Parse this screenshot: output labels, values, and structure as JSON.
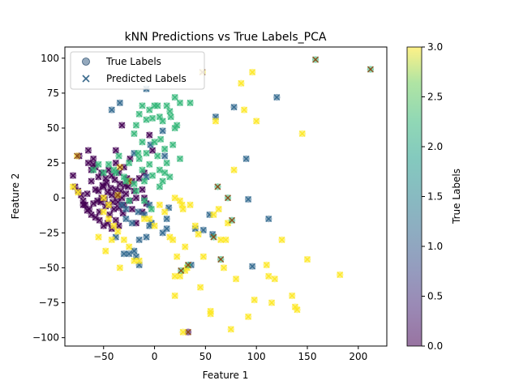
{
  "chart_data": {
    "type": "scatter",
    "title": "kNN Predictions vs True Labels_PCA",
    "xlabel": "Feature 1",
    "ylabel": "Feature 2",
    "xlim": [
      -88,
      228
    ],
    "ylim": [
      -106,
      108
    ],
    "xticks": [
      "−50",
      "0",
      "50",
      "100",
      "150",
      "200"
    ],
    "yticks": [
      "−100",
      "−75",
      "−50",
      "−25",
      "0",
      "25",
      "50",
      "75",
      "100"
    ],
    "xtick_values": [
      -50,
      0,
      50,
      100,
      150,
      200
    ],
    "ytick_values": [
      -100,
      -75,
      -50,
      -25,
      0,
      25,
      50,
      75,
      100
    ],
    "grid": false,
    "legend": {
      "placement": "upper-left",
      "entries": [
        "True Labels",
        "Predicted Labels"
      ]
    },
    "colorbar": {
      "label": "True Labels",
      "range": [
        0.0,
        3.0
      ],
      "ticks": [
        "0.0",
        "0.5",
        "1.0",
        "1.5",
        "2.0",
        "2.5",
        "3.0"
      ],
      "tick_values": [
        0,
        0.5,
        1.0,
        1.5,
        2.0,
        2.5,
        3.0
      ],
      "colormap": "viridis"
    },
    "colors": {
      "class_0": "#440154",
      "class_1": "#31688e",
      "class_2": "#35b779",
      "class_3": "#fde725",
      "mismatch": "#8b4513"
    },
    "points": [
      [
        -80,
        16,
        0,
        0
      ],
      [
        -78,
        8,
        0,
        0
      ],
      [
        -75,
        5,
        0,
        0
      ],
      [
        -72,
        2,
        0,
        0
      ],
      [
        -70,
        -2,
        0,
        0
      ],
      [
        -68,
        -5,
        0,
        0
      ],
      [
        -66,
        3,
        0,
        0
      ],
      [
        -64,
        -8,
        0,
        0
      ],
      [
        -62,
        12,
        0,
        0
      ],
      [
        -60,
        -4,
        0,
        0
      ],
      [
        -58,
        6,
        0,
        0
      ],
      [
        -56,
        -2,
        0,
        0
      ],
      [
        -54,
        -10,
        0,
        0
      ],
      [
        -52,
        0,
        0,
        0
      ],
      [
        -50,
        8,
        0,
        0
      ],
      [
        -48,
        -6,
        0,
        0
      ],
      [
        -46,
        4,
        0,
        0
      ],
      [
        -44,
        -12,
        0,
        0
      ],
      [
        -42,
        2,
        0,
        0
      ],
      [
        -40,
        -8,
        0,
        0
      ],
      [
        -38,
        6,
        0,
        0
      ],
      [
        -36,
        -3,
        0,
        0
      ],
      [
        -34,
        10,
        0,
        0
      ],
      [
        -32,
        0,
        0,
        0
      ],
      [
        -30,
        -5,
        0,
        0
      ],
      [
        -28,
        3,
        0,
        0
      ],
      [
        -26,
        8,
        0,
        0
      ],
      [
        -24,
        -2,
        0,
        0
      ],
      [
        -22,
        12,
        0,
        0
      ],
      [
        -20,
        5,
        0,
        0
      ],
      [
        -18,
        0,
        0,
        0
      ],
      [
        -65,
        25,
        0,
        0
      ],
      [
        -62,
        20,
        0,
        0
      ],
      [
        -60,
        28,
        0,
        0
      ],
      [
        -58,
        22,
        0,
        0
      ],
      [
        -55,
        15,
        0,
        0
      ],
      [
        -52,
        18,
        0,
        0
      ],
      [
        -48,
        14,
        0,
        0
      ],
      [
        -45,
        20,
        0,
        0
      ],
      [
        -42,
        16,
        0,
        0
      ],
      [
        -38,
        25,
        0,
        0
      ],
      [
        -35,
        18,
        0,
        0
      ],
      [
        -30,
        22,
        0,
        0
      ],
      [
        -27,
        14,
        0,
        0
      ],
      [
        -24,
        28,
        0,
        0
      ],
      [
        -70,
        -5,
        0,
        0
      ],
      [
        -66,
        -9,
        0,
        0
      ],
      [
        -62,
        -12,
        0,
        0
      ],
      [
        -58,
        -14,
        0,
        0
      ],
      [
        -54,
        -16,
        0,
        0
      ],
      [
        -50,
        -20,
        0,
        0
      ],
      [
        -46,
        -18,
        0,
        0
      ],
      [
        -42,
        -22,
        0,
        0
      ],
      [
        -38,
        -16,
        0,
        0
      ],
      [
        -35,
        -20,
        0,
        0
      ],
      [
        -55,
        5,
        0,
        0
      ],
      [
        -53,
        -3,
        0,
        0
      ],
      [
        -51,
        9,
        0,
        0
      ],
      [
        -49,
        -1,
        0,
        0
      ],
      [
        -47,
        11,
        0,
        0
      ],
      [
        -45,
        -5,
        0,
        0
      ],
      [
        -43,
        7,
        0,
        0
      ],
      [
        -41,
        -3,
        0,
        0
      ],
      [
        -39,
        13,
        0,
        0
      ],
      [
        -37,
        1,
        0,
        0
      ],
      [
        -35,
        -7,
        0,
        0
      ],
      [
        -33,
        5,
        0,
        0
      ],
      [
        -31,
        -11,
        0,
        0
      ],
      [
        -29,
        9,
        0,
        0
      ],
      [
        -15,
        14,
        0,
        0
      ],
      [
        -12,
        6,
        0,
        0
      ],
      [
        -10,
        18,
        0,
        0
      ],
      [
        -8,
        -4,
        0,
        0
      ],
      [
        -5,
        45,
        0,
        0
      ],
      [
        -32,
        52,
        0,
        0
      ],
      [
        -38,
        34,
        0,
        0
      ],
      [
        -22,
        -8,
        0,
        0
      ],
      [
        -18,
        -18,
        0,
        0
      ],
      [
        -74,
        30,
        0,
        0
      ],
      [
        -65,
        34,
        0,
        0
      ],
      [
        -60,
        24,
        0,
        0
      ],
      [
        -12,
        -10,
        0,
        0
      ],
      [
        -10,
        0,
        0,
        0
      ],
      [
        -2,
        34,
        0,
        0
      ],
      [
        -76,
        30,
        3,
        0
      ],
      [
        47,
        90,
        3,
        0
      ],
      [
        -34,
        22,
        3,
        0
      ],
      [
        -25,
        12,
        3,
        0
      ],
      [
        -36,
        2,
        3,
        0
      ],
      [
        -28,
        -8,
        1,
        1
      ],
      [
        -38,
        -28,
        1,
        1
      ],
      [
        -30,
        -40,
        1,
        1
      ],
      [
        -20,
        -38,
        1,
        1
      ],
      [
        -22,
        -18,
        1,
        1
      ],
      [
        -16,
        -10,
        1,
        1
      ],
      [
        -10,
        -12,
        1,
        1
      ],
      [
        -8,
        -28,
        1,
        1
      ],
      [
        -5,
        -20,
        1,
        1
      ],
      [
        -15,
        -30,
        1,
        1
      ],
      [
        -32,
        -5,
        1,
        1
      ],
      [
        -28,
        -15,
        1,
        1
      ],
      [
        -34,
        68,
        1,
        1
      ],
      [
        -42,
        63,
        1,
        1
      ],
      [
        -20,
        32,
        1,
        1
      ],
      [
        -8,
        15,
        1,
        1
      ],
      [
        -4,
        38,
        1,
        1
      ],
      [
        8,
        48,
        1,
        1
      ],
      [
        10,
        30,
        1,
        1
      ],
      [
        12,
        -15,
        1,
        1
      ],
      [
        8,
        -25,
        1,
        1
      ],
      [
        36,
        -48,
        1,
        1
      ],
      [
        40,
        -22,
        1,
        1
      ],
      [
        48,
        -23,
        1,
        1
      ],
      [
        57,
        -26,
        1,
        1
      ],
      [
        54,
        -12,
        1,
        1
      ],
      [
        60,
        58,
        1,
        1
      ],
      [
        78,
        65,
        1,
        1
      ],
      [
        90,
        28,
        1,
        1
      ],
      [
        92,
        -1,
        1,
        1
      ],
      [
        96,
        -49,
        1,
        1
      ],
      [
        112,
        -15,
        1,
        1
      ],
      [
        120,
        72,
        1,
        1
      ],
      [
        -8,
        78,
        1,
        1
      ],
      [
        -25,
        -40,
        1,
        1
      ],
      [
        -18,
        -42,
        1,
        1
      ],
      [
        -15,
        -48,
        1,
        1
      ],
      [
        -3,
        -18,
        1,
        1
      ],
      [
        -5,
        -5,
        1,
        1
      ],
      [
        12,
        -22,
        1,
        1
      ],
      [
        14,
        -7,
        1,
        1
      ],
      [
        33,
        -96,
        0,
        1
      ],
      [
        65,
        -44,
        2,
        1
      ],
      [
        72,
        0,
        2,
        1
      ],
      [
        -45,
        24,
        2,
        2
      ],
      [
        -40,
        20,
        2,
        2
      ],
      [
        -35,
        30,
        2,
        2
      ],
      [
        -30,
        15,
        2,
        2
      ],
      [
        -25,
        25,
        2,
        2
      ],
      [
        -20,
        10,
        2,
        2
      ],
      [
        -15,
        28,
        2,
        2
      ],
      [
        -12,
        20,
        2,
        2
      ],
      [
        -10,
        12,
        2,
        2
      ],
      [
        -8,
        32,
        2,
        2
      ],
      [
        -5,
        24,
        2,
        2
      ],
      [
        -2,
        16,
        2,
        2
      ],
      [
        0,
        40,
        2,
        2
      ],
      [
        3,
        30,
        2,
        2
      ],
      [
        5,
        20,
        2,
        2
      ],
      [
        8,
        12,
        2,
        2
      ],
      [
        10,
        35,
        2,
        2
      ],
      [
        12,
        25,
        2,
        2
      ],
      [
        15,
        15,
        2,
        2
      ],
      [
        18,
        38,
        2,
        2
      ],
      [
        20,
        50,
        2,
        2
      ],
      [
        22,
        52,
        2,
        2
      ],
      [
        25,
        28,
        2,
        2
      ],
      [
        -20,
        46,
        2,
        2
      ],
      [
        -18,
        52,
        2,
        2
      ],
      [
        -15,
        60,
        2,
        2
      ],
      [
        -12,
        66,
        2,
        2
      ],
      [
        -8,
        56,
        2,
        2
      ],
      [
        -5,
        63,
        2,
        2
      ],
      [
        -2,
        57,
        2,
        2
      ],
      [
        0,
        66,
        2,
        2
      ],
      [
        3,
        66,
        2,
        2
      ],
      [
        5,
        58,
        2,
        2
      ],
      [
        8,
        55,
        2,
        2
      ],
      [
        12,
        66,
        2,
        2
      ],
      [
        15,
        62,
        2,
        2
      ],
      [
        20,
        72,
        2,
        2
      ],
      [
        25,
        68,
        2,
        2
      ],
      [
        35,
        68,
        2,
        2
      ],
      [
        -50,
        18,
        2,
        2
      ],
      [
        -55,
        24,
        2,
        2
      ],
      [
        -60,
        20,
        2,
        2
      ],
      [
        -38,
        18,
        2,
        2
      ],
      [
        -28,
        12,
        2,
        2
      ],
      [
        -18,
        5,
        2,
        2
      ],
      [
        5,
        8,
        2,
        2
      ],
      [
        10,
        18,
        2,
        2
      ],
      [
        -16,
        32,
        2,
        2
      ],
      [
        -12,
        40,
        2,
        2
      ],
      [
        6,
        42,
        2,
        2
      ],
      [
        16,
        58,
        2,
        2
      ],
      [
        -10,
        -2,
        2,
        2
      ],
      [
        -3,
        -8,
        2,
        2
      ],
      [
        -25,
        -2,
        2,
        2
      ],
      [
        -80,
        8,
        3,
        3
      ],
      [
        -75,
        4,
        3,
        3
      ],
      [
        -50,
        -10,
        3,
        3
      ],
      [
        -45,
        -15,
        3,
        3
      ],
      [
        -40,
        -20,
        3,
        3
      ],
      [
        -42,
        -30,
        3,
        3
      ],
      [
        -36,
        -24,
        3,
        3
      ],
      [
        -30,
        -30,
        3,
        3
      ],
      [
        -25,
        -35,
        3,
        3
      ],
      [
        -20,
        -45,
        3,
        3
      ],
      [
        -15,
        -45,
        3,
        3
      ],
      [
        -10,
        -15,
        3,
        3
      ],
      [
        -5,
        -15,
        3,
        3
      ],
      [
        0,
        -20,
        3,
        3
      ],
      [
        5,
        -5,
        3,
        3
      ],
      [
        10,
        -10,
        3,
        3
      ],
      [
        15,
        -28,
        3,
        3
      ],
      [
        18,
        -30,
        3,
        3
      ],
      [
        20,
        -56,
        3,
        3
      ],
      [
        22,
        -42,
        3,
        3
      ],
      [
        25,
        -2,
        3,
        3
      ],
      [
        27,
        -5,
        3,
        3
      ],
      [
        28,
        -8,
        3,
        3
      ],
      [
        30,
        -52,
        3,
        3
      ],
      [
        32,
        -50,
        3,
        3
      ],
      [
        35,
        -5,
        3,
        3
      ],
      [
        40,
        -20,
        3,
        3
      ],
      [
        43,
        -26,
        3,
        3
      ],
      [
        45,
        -64,
        3,
        3
      ],
      [
        48,
        -42,
        3,
        3
      ],
      [
        55,
        -81,
        3,
        3
      ],
      [
        58,
        -12,
        3,
        3
      ],
      [
        60,
        55,
        3,
        3
      ],
      [
        63,
        -8,
        3,
        3
      ],
      [
        65,
        -30,
        3,
        3
      ],
      [
        68,
        -50,
        3,
        3
      ],
      [
        70,
        -30,
        3,
        3
      ],
      [
        72,
        -18,
        3,
        3
      ],
      [
        75,
        -94,
        3,
        3
      ],
      [
        78,
        20,
        3,
        3
      ],
      [
        80,
        -58,
        3,
        3
      ],
      [
        85,
        82,
        3,
        3
      ],
      [
        88,
        63,
        3,
        3
      ],
      [
        92,
        -85,
        3,
        3
      ],
      [
        96,
        90,
        3,
        3
      ],
      [
        98,
        -73,
        3,
        3
      ],
      [
        100,
        55,
        3,
        3
      ],
      [
        110,
        -48,
        3,
        3
      ],
      [
        112,
        -56,
        3,
        3
      ],
      [
        115,
        -75,
        3,
        3
      ],
      [
        118,
        -58,
        3,
        3
      ],
      [
        125,
        -30,
        3,
        3
      ],
      [
        135,
        -70,
        3,
        3
      ],
      [
        138,
        -78,
        3,
        3
      ],
      [
        140,
        -80,
        3,
        3
      ],
      [
        145,
        46,
        3,
        3
      ],
      [
        150,
        -44,
        3,
        3
      ],
      [
        182,
        -55,
        3,
        3
      ],
      [
        20,
        -70,
        3,
        3
      ],
      [
        25,
        -56,
        3,
        3
      ],
      [
        28,
        -96,
        3,
        3
      ],
      [
        30,
        -35,
        3,
        3
      ],
      [
        55,
        -83,
        3,
        3
      ],
      [
        -48,
        -38,
        3,
        3
      ],
      [
        -55,
        -28,
        3,
        3
      ],
      [
        -34,
        -50,
        3,
        3
      ],
      [
        -45,
        -5,
        3,
        3
      ],
      [
        -50,
        0,
        3,
        3
      ],
      [
        20,
        0,
        3,
        3
      ],
      [
        62,
        8,
        2,
        3
      ],
      [
        76,
        -16,
        2,
        3
      ],
      [
        158,
        99,
        2,
        3
      ],
      [
        212,
        92,
        2,
        3
      ],
      [
        26,
        -52,
        2,
        3
      ],
      [
        58,
        -28,
        2,
        3
      ],
      [
        33,
        -48,
        2,
        3
      ]
    ]
  }
}
